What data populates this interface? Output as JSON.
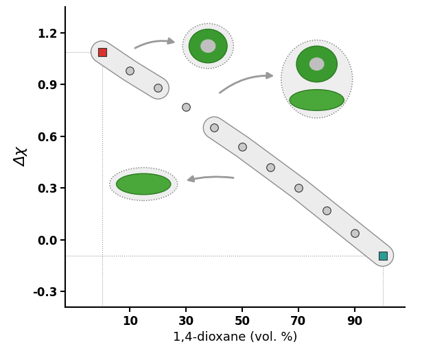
{
  "chart_data": {
    "type": "scatter",
    "xlabel": "1,4-dioxane (vol. %)",
    "ylabel": "Δχ",
    "series": [
      {
        "x": [
          0
        ],
        "values": [
          1.09
        ],
        "color": "#d9312b",
        "marker": "square"
      },
      {
        "x": [
          10,
          20,
          30,
          40,
          50,
          60,
          70,
          80,
          90
        ],
        "values": [
          0.98,
          0.88,
          0.77,
          0.65,
          0.54,
          0.42,
          0.3,
          0.17,
          0.04
        ],
        "color": "#c9c9c9",
        "marker": "circle"
      },
      {
        "x": [
          100
        ],
        "values": [
          -0.09
        ],
        "color": "#2a9c98",
        "marker": "square"
      }
    ],
    "xlim": [
      -13,
      108
    ],
    "ylim": [
      -0.39,
      1.35
    ],
    "xticks": [
      10,
      30,
      50,
      70,
      90
    ],
    "yticks": [
      -0.3,
      0.0,
      0.3,
      0.6,
      0.9,
      1.2
    ],
    "grid": false
  }
}
